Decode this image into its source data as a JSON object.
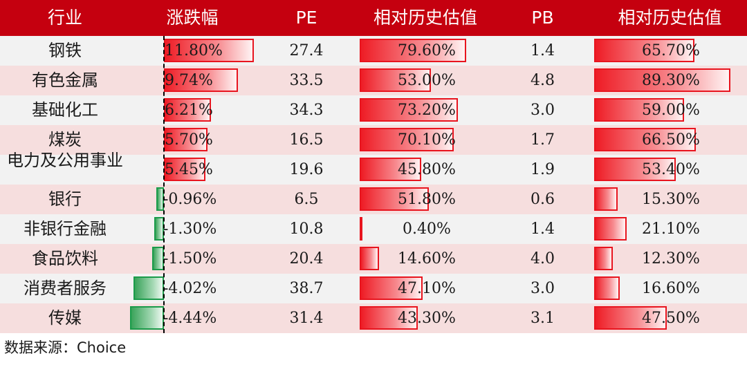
{
  "colors": {
    "header_bg": "#c5000f",
    "positive_bar": "#ee1c25",
    "negative_bar": "#1a9b4a",
    "row_odd": "#f2f2f2",
    "row_even": "#f6dede"
  },
  "source": "数据来源：Choice",
  "chart_data": {
    "type": "table",
    "columns": [
      "行业",
      "涨跌幅",
      "PE",
      "相对历史估值",
      "PB",
      "相对历史估值"
    ],
    "rows": [
      {
        "industry": "钢铁",
        "change": 11.8,
        "change_label": "11.80%",
        "pe": "27.4",
        "pe_pct": 79.6,
        "pe_pct_label": "79.60%",
        "pb": "1.4",
        "pb_pct": 65.7,
        "pb_pct_label": "65.70%"
      },
      {
        "industry": "有色金属",
        "change": 9.74,
        "change_label": "9.74%",
        "pe": "33.5",
        "pe_pct": 53.0,
        "pe_pct_label": "53.00%",
        "pb": "4.8",
        "pb_pct": 89.3,
        "pb_pct_label": "89.30%"
      },
      {
        "industry": "基础化工",
        "change": 6.21,
        "change_label": "6.21%",
        "pe": "34.3",
        "pe_pct": 73.2,
        "pe_pct_label": "73.20%",
        "pb": "3.0",
        "pb_pct": 59.0,
        "pb_pct_label": "59.00%"
      },
      {
        "industry": "煤炭",
        "change": 5.7,
        "change_label": "5.70%",
        "pe": "16.5",
        "pe_pct": 70.1,
        "pe_pct_label": "70.10%",
        "pb": "1.7",
        "pb_pct": 66.5,
        "pb_pct_label": "66.50%"
      },
      {
        "industry": "电力及公用事业",
        "change": 5.45,
        "change_label": "5.45%",
        "pe": "19.6",
        "pe_pct": 45.8,
        "pe_pct_label": "45.80%",
        "pb": "1.9",
        "pb_pct": 53.4,
        "pb_pct_label": "53.40%"
      },
      {
        "industry": "银行",
        "change": -0.96,
        "change_label": "-0.96%",
        "pe": "6.5",
        "pe_pct": 51.8,
        "pe_pct_label": "51.80%",
        "pb": "0.6",
        "pb_pct": 15.3,
        "pb_pct_label": "15.30%"
      },
      {
        "industry": "非银行金融",
        "change": -1.3,
        "change_label": "-1.30%",
        "pe": "10.8",
        "pe_pct": 0.4,
        "pe_pct_label": "0.40%",
        "pb": "1.4",
        "pb_pct": 21.1,
        "pb_pct_label": "21.10%"
      },
      {
        "industry": "食品饮料",
        "change": -1.5,
        "change_label": "-1.50%",
        "pe": "20.4",
        "pe_pct": 14.6,
        "pe_pct_label": "14.60%",
        "pb": "4.0",
        "pb_pct": 12.3,
        "pb_pct_label": "12.30%"
      },
      {
        "industry": "消费者服务",
        "change": -4.02,
        "change_label": "-4.02%",
        "pe": "38.7",
        "pe_pct": 47.1,
        "pe_pct_label": "47.10%",
        "pb": "3.0",
        "pb_pct": 16.6,
        "pb_pct_label": "16.60%"
      },
      {
        "industry": "传媒",
        "change": -4.44,
        "change_label": "-4.44%",
        "pe": "31.4",
        "pe_pct": 43.3,
        "pe_pct_label": "43.30%",
        "pb": "3.1",
        "pb_pct": 47.5,
        "pb_pct_label": "47.50%"
      }
    ]
  }
}
